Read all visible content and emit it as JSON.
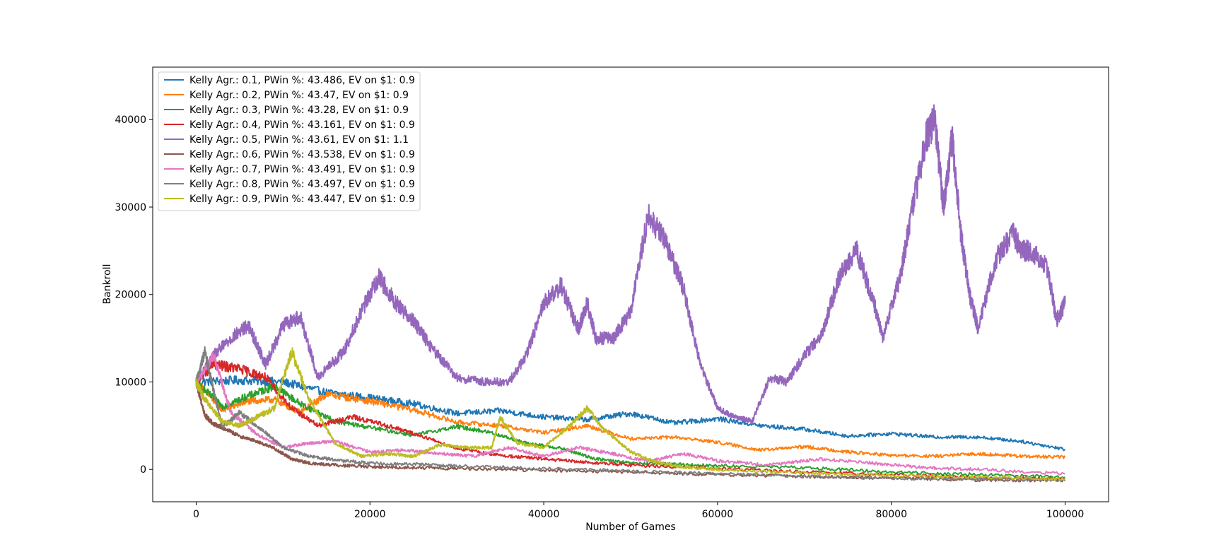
{
  "chart_data": {
    "type": "line",
    "title": "",
    "xlabel": "Number of Games",
    "ylabel": "Bankroll",
    "xlim": [
      -5000,
      105000
    ],
    "ylim": [
      -3700,
      46000
    ],
    "xticks": [
      0,
      20000,
      40000,
      60000,
      80000,
      100000
    ],
    "yticks": [
      0,
      10000,
      20000,
      30000,
      40000
    ],
    "grid": false,
    "legend_position": "top-left",
    "series": [
      {
        "name": "Kelly Agr.: 0.1, PWin %: 43.486, EV on $1: 0.9",
        "color": "#1f77b4",
        "x": [
          0,
          5000,
          10000,
          15000,
          20000,
          25000,
          30000,
          35000,
          40000,
          45000,
          50000,
          55000,
          60000,
          65000,
          70000,
          75000,
          80000,
          85000,
          90000,
          95000,
          100000
        ],
        "y": [
          10000,
          10200,
          10000,
          8800,
          8200,
          7500,
          6400,
          6700,
          6000,
          5700,
          6400,
          5300,
          5800,
          5000,
          4600,
          3800,
          4100,
          3700,
          3700,
          3200,
          2300
        ]
      },
      {
        "name": "Kelly Agr.: 0.2, PWin %: 43.47, EV on $1: 0.9",
        "color": "#ff7f0e",
        "x": [
          0,
          3000,
          6000,
          9000,
          12000,
          15000,
          20000,
          25000,
          30000,
          35000,
          40000,
          45000,
          50000,
          55000,
          60000,
          65000,
          70000,
          75000,
          80000,
          85000,
          90000,
          95000,
          100000
        ],
        "y": [
          10000,
          6800,
          7800,
          8000,
          6500,
          8600,
          7800,
          6800,
          5400,
          5000,
          4200,
          5000,
          3500,
          3700,
          3100,
          2200,
          2600,
          2000,
          1600,
          1500,
          1800,
          1500,
          1400
        ]
      },
      {
        "name": "Kelly Agr.: 0.3, PWin %: 43.28, EV on $1: 0.9",
        "color": "#2ca02c",
        "x": [
          0,
          3000,
          6000,
          9000,
          12000,
          16000,
          20000,
          25000,
          30000,
          34000,
          38000,
          42000,
          46000,
          50000,
          55000,
          60000,
          70000,
          80000,
          90000,
          100000
        ],
        "y": [
          10000,
          7200,
          8400,
          9500,
          7500,
          5500,
          4800,
          3900,
          4900,
          4200,
          3000,
          2400,
          1200,
          700,
          600,
          400,
          200,
          -300,
          -600,
          -900
        ]
      },
      {
        "name": "Kelly Agr.: 0.4, PWin %: 43.161, EV on $1: 0.9",
        "color": "#d62728",
        "x": [
          0,
          2000,
          5000,
          8000,
          11000,
          14000,
          18000,
          22000,
          26000,
          30000,
          35000,
          40000,
          45000,
          50000,
          60000,
          70000,
          80000,
          90000,
          100000
        ],
        "y": [
          10000,
          12000,
          11500,
          10500,
          7000,
          5000,
          6000,
          5000,
          3800,
          2400,
          1600,
          1200,
          800,
          500,
          100,
          -300,
          -600,
          -900,
          -1100
        ]
      },
      {
        "name": "Kelly Agr.: 0.5, PWin %: 43.61, EV on $1: 1.1",
        "color": "#9467bd",
        "x": [
          0,
          2000,
          4000,
          6000,
          8000,
          10000,
          12000,
          14000,
          17000,
          19000,
          21000,
          23000,
          25000,
          27000,
          30000,
          33000,
          36000,
          38000,
          40000,
          42000,
          44000,
          45000,
          46000,
          48000,
          50000,
          52000,
          54000,
          56000,
          58000,
          60000,
          62000,
          64000,
          66000,
          68000,
          70000,
          72000,
          74000,
          76000,
          78000,
          79000,
          81000,
          82000,
          84000,
          85000,
          86000,
          87000,
          88000,
          89000,
          90000,
          92000,
          94000,
          95000,
          96000,
          98000,
          99000,
          100000
        ],
        "y": [
          10000,
          13000,
          15000,
          16500,
          12000,
          16500,
          17500,
          10500,
          13500,
          18000,
          22000,
          19000,
          17000,
          14000,
          10500,
          10000,
          10000,
          13000,
          19000,
          21000,
          16000,
          19000,
          15000,
          15000,
          18000,
          29000,
          26000,
          21000,
          12000,
          7000,
          6000,
          5500,
          10500,
          10000,
          13000,
          15500,
          22000,
          25000,
          19000,
          15000,
          22000,
          27500,
          38000,
          40000,
          30000,
          38000,
          27000,
          20000,
          16000,
          24000,
          27000,
          25000,
          25000,
          23000,
          17000,
          19000
        ]
      },
      {
        "name": "Kelly Agr.: 0.6, PWin %: 43.538, EV on $1: 0.9",
        "color": "#8c564b",
        "x": [
          0,
          1000,
          2000,
          3000,
          5000,
          7000,
          9000,
          11000,
          13000,
          16000,
          20000,
          25000,
          30000,
          40000,
          50000,
          60000,
          70000,
          80000,
          90000,
          100000
        ],
        "y": [
          10000,
          6200,
          5200,
          4800,
          3800,
          3200,
          2400,
          1200,
          700,
          500,
          300,
          200,
          100,
          -100,
          -300,
          -600,
          -800,
          -1000,
          -1200,
          -1300
        ]
      },
      {
        "name": "Kelly Agr.: 0.7, PWin %: 43.491, EV on $1: 0.9",
        "color": "#e377c2",
        "x": [
          0,
          2000,
          4000,
          7000,
          10000,
          13000,
          16000,
          20000,
          24000,
          28000,
          32000,
          36000,
          40000,
          44000,
          48000,
          52000,
          56000,
          60000,
          66000,
          72000,
          78000,
          84000,
          90000,
          100000
        ],
        "y": [
          10000,
          13000,
          6500,
          4000,
          2500,
          3000,
          3200,
          2000,
          2200,
          1800,
          1500,
          2500,
          1500,
          2500,
          1800,
          900,
          1800,
          1000,
          500,
          1200,
          700,
          200,
          0,
          -500
        ]
      },
      {
        "name": "Kelly Agr.: 0.8, PWin %: 43.497, EV on $1: 0.9",
        "color": "#7f7f7f",
        "x": [
          0,
          1000,
          2000,
          3000,
          5000,
          8000,
          10000,
          13000,
          16000,
          20000,
          25000,
          30000,
          40000,
          50000,
          60000,
          70000,
          80000,
          90000,
          100000
        ],
        "y": [
          10000,
          13500,
          9000,
          4800,
          6500,
          4200,
          2500,
          1500,
          1100,
          700,
          600,
          400,
          100,
          -200,
          -500,
          -800,
          -1000,
          -1100,
          -1200
        ]
      },
      {
        "name": "Kelly Agr.: 0.9, PWin %: 43.447, EV on $1: 0.9",
        "color": "#bcbd22",
        "x": [
          0,
          1000,
          3000,
          5000,
          7000,
          9000,
          11000,
          13000,
          16000,
          19000,
          22000,
          25000,
          28000,
          31000,
          34000,
          35000,
          37000,
          40000,
          43000,
          45000,
          47000,
          50000,
          53000,
          56000,
          60000,
          70000,
          80000,
          90000,
          100000
        ],
        "y": [
          10000,
          8000,
          5500,
          5000,
          6000,
          7000,
          13500,
          8000,
          3000,
          1500,
          1800,
          1500,
          2800,
          2500,
          2500,
          6000,
          3000,
          2500,
          5000,
          7000,
          4500,
          2000,
          800,
          300,
          0,
          -400,
          -700,
          -900,
          -1100
        ]
      }
    ]
  }
}
